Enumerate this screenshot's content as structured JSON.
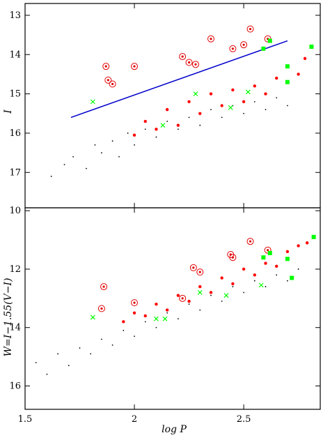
{
  "chart_data": [
    {
      "type": "scatter",
      "panel": "top",
      "xlabel": "",
      "ylabel": "I",
      "xlim": [
        1.5,
        2.85
      ],
      "ylim": [
        17.9,
        12.7
      ],
      "y_inverted": true,
      "yticks": [
        "13",
        "14",
        "15",
        "16",
        "17"
      ],
      "series": [
        {
          "marker": "dot",
          "color": "#000000",
          "points": [
            [
              1.62,
              17.1
            ],
            [
              1.68,
              16.8
            ],
            [
              1.72,
              16.6
            ],
            [
              1.78,
              16.9
            ],
            [
              1.82,
              16.3
            ],
            [
              1.85,
              16.5
            ],
            [
              1.9,
              16.2
            ],
            [
              1.93,
              16.6
            ],
            [
              1.97,
              16.0
            ],
            [
              2.0,
              16.3
            ],
            [
              2.05,
              15.9
            ],
            [
              2.1,
              16.1
            ],
            [
              2.15,
              15.7
            ],
            [
              2.2,
              15.9
            ],
            [
              2.25,
              15.6
            ],
            [
              2.3,
              15.8
            ],
            [
              2.35,
              15.4
            ],
            [
              2.4,
              15.6
            ],
            [
              2.45,
              15.3
            ],
            [
              2.5,
              15.5
            ],
            [
              2.55,
              15.2
            ],
            [
              2.6,
              15.4
            ],
            [
              2.65,
              15.1
            ],
            [
              2.7,
              15.3
            ]
          ]
        },
        {
          "marker": "circle",
          "color": "#e00000",
          "points": [
            [
              1.87,
              14.3
            ],
            [
              1.88,
              14.65
            ],
            [
              1.9,
              14.75
            ],
            [
              2.0,
              14.3
            ],
            [
              2.22,
              14.05
            ],
            [
              2.25,
              14.2
            ],
            [
              2.28,
              14.25
            ],
            [
              2.35,
              13.6
            ],
            [
              2.45,
              13.85
            ],
            [
              2.5,
              13.75
            ],
            [
              2.53,
              13.35
            ],
            [
              2.61,
              13.6
            ]
          ]
        },
        {
          "marker": "dot",
          "color": "#ff0000",
          "points": [
            [
              2.0,
              16.05
            ],
            [
              2.05,
              15.7
            ],
            [
              2.1,
              15.9
            ],
            [
              2.15,
              15.4
            ],
            [
              2.2,
              15.8
            ],
            [
              2.25,
              15.2
            ],
            [
              2.3,
              15.5
            ],
            [
              2.35,
              15.0
            ],
            [
              2.4,
              15.3
            ],
            [
              2.45,
              14.9
            ],
            [
              2.5,
              15.2
            ],
            [
              2.55,
              14.8
            ],
            [
              2.6,
              15.0
            ],
            [
              2.65,
              14.6
            ],
            [
              2.7,
              14.7
            ],
            [
              2.75,
              14.5
            ],
            [
              2.78,
              14.1
            ]
          ]
        },
        {
          "marker": "square",
          "color": "#00ff00",
          "points": [
            [
              2.59,
              13.85
            ],
            [
              2.62,
              13.65
            ],
            [
              2.7,
              14.3
            ],
            [
              2.81,
              13.8
            ],
            [
              2.7,
              14.7
            ]
          ]
        },
        {
          "marker": "cross",
          "color": "#00ff00",
          "points": [
            [
              1.81,
              15.2
            ],
            [
              2.13,
              15.8
            ],
            [
              2.28,
              15.0
            ],
            [
              2.44,
              15.35
            ],
            [
              2.52,
              14.95
            ]
          ]
        }
      ],
      "line": {
        "color": "#0000cc",
        "x": [
          1.71,
          2.7
        ],
        "y": [
          15.6,
          13.65
        ]
      }
    },
    {
      "type": "scatter",
      "panel": "bottom",
      "xlabel": "log P",
      "ylabel": "W=I−1.55(V−I)",
      "xlim": [
        1.5,
        2.85
      ],
      "ylim": [
        16.8,
        9.9
      ],
      "y_inverted": true,
      "xticks": [
        "1.5",
        "2",
        "2.5"
      ],
      "yticks": [
        "10",
        "12",
        "14",
        "16"
      ],
      "series": [
        {
          "marker": "dot",
          "color": "#000000",
          "points": [
            [
              1.55,
              15.2
            ],
            [
              1.6,
              15.6
            ],
            [
              1.65,
              14.9
            ],
            [
              1.7,
              15.3
            ],
            [
              1.75,
              14.7
            ],
            [
              1.8,
              14.9
            ],
            [
              1.85,
              14.4
            ],
            [
              1.9,
              14.6
            ],
            [
              1.95,
              14.1
            ],
            [
              2.0,
              14.3
            ],
            [
              2.05,
              13.8
            ],
            [
              2.1,
              14.0
            ],
            [
              2.15,
              13.5
            ],
            [
              2.2,
              13.7
            ],
            [
              2.25,
              13.2
            ],
            [
              2.3,
              13.4
            ],
            [
              2.35,
              12.9
            ],
            [
              2.4,
              13.1
            ],
            [
              2.45,
              12.6
            ],
            [
              2.5,
              12.8
            ],
            [
              2.55,
              12.4
            ],
            [
              2.6,
              12.6
            ],
            [
              2.65,
              12.2
            ],
            [
              2.7,
              12.4
            ],
            [
              2.75,
              12.0
            ]
          ]
        },
        {
          "marker": "circle",
          "color": "#e00000",
          "points": [
            [
              1.86,
              12.6
            ],
            [
              1.85,
              13.35
            ],
            [
              2.0,
              13.15
            ],
            [
              2.27,
              11.95
            ],
            [
              2.3,
              12.1
            ],
            [
              2.44,
              11.5
            ],
            [
              2.45,
              11.6
            ],
            [
              2.53,
              11.05
            ],
            [
              2.61,
              11.35
            ],
            [
              2.22,
              13.0
            ]
          ]
        },
        {
          "marker": "dot",
          "color": "#ff0000",
          "points": [
            [
              1.95,
              13.8
            ],
            [
              2.0,
              13.5
            ],
            [
              2.05,
              13.6
            ],
            [
              2.1,
              13.2
            ],
            [
              2.15,
              13.4
            ],
            [
              2.2,
              12.9
            ],
            [
              2.25,
              13.1
            ],
            [
              2.3,
              12.6
            ],
            [
              2.35,
              12.8
            ],
            [
              2.4,
              12.3
            ],
            [
              2.45,
              12.5
            ],
            [
              2.5,
              12.0
            ],
            [
              2.55,
              12.2
            ],
            [
              2.6,
              11.8
            ],
            [
              2.65,
              11.9
            ],
            [
              2.7,
              11.4
            ],
            [
              2.75,
              11.2
            ],
            [
              2.79,
              11.1
            ]
          ]
        },
        {
          "marker": "square",
          "color": "#00ff00",
          "points": [
            [
              2.59,
              11.6
            ],
            [
              2.62,
              11.45
            ],
            [
              2.7,
              11.65
            ],
            [
              2.82,
              10.9
            ],
            [
              2.72,
              12.3
            ]
          ]
        },
        {
          "marker": "cross",
          "color": "#00ff00",
          "points": [
            [
              1.81,
              13.65
            ],
            [
              2.1,
              13.7
            ],
            [
              2.14,
              13.7
            ],
            [
              2.3,
              12.8
            ],
            [
              2.42,
              12.9
            ],
            [
              2.58,
              12.55
            ]
          ]
        }
      ]
    }
  ]
}
